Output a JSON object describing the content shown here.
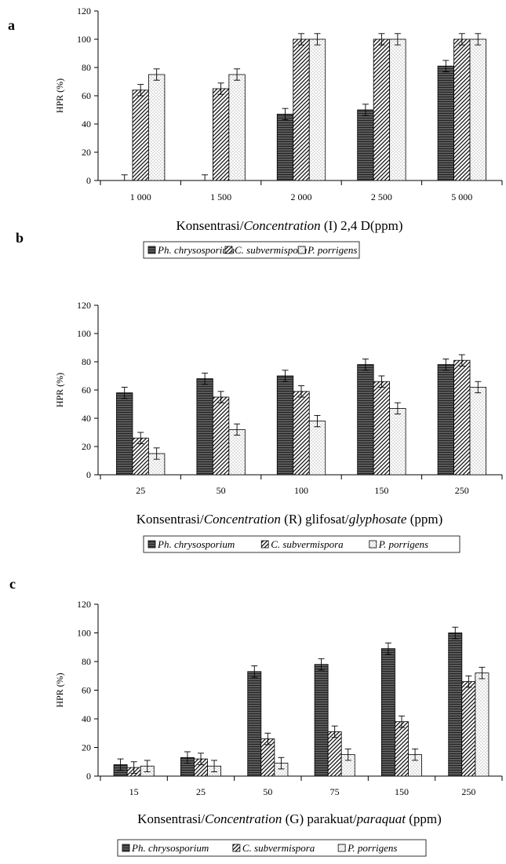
{
  "legend": [
    "Ph. chrysosporium",
    "C. subvermispora",
    "P. porrigens"
  ],
  "chart_data": [
    {
      "type": "bar",
      "panel": "a",
      "xlabel_parts": [
        {
          "text": "Konsentrasi/",
          "italic": false
        },
        {
          "text": "Concentration",
          "italic": true
        },
        {
          "text": " (I) 2,4 D(ppm)",
          "italic": false
        }
      ],
      "ylabel": "HPR (%)",
      "ylim": [
        0,
        120
      ],
      "yticks": [
        0,
        20,
        40,
        60,
        80,
        100,
        120
      ],
      "categories": [
        "1 000",
        "1 500",
        "2 000",
        "2 500",
        "5 000"
      ],
      "series": [
        {
          "name": "Ph. chrysosporium",
          "values": [
            0,
            0,
            47,
            50,
            81
          ]
        },
        {
          "name": "C. subvermispora",
          "values": [
            64,
            65,
            100,
            100,
            100
          ]
        },
        {
          "name": "P. porrigens",
          "values": [
            75,
            75,
            100,
            100,
            100
          ]
        }
      ],
      "error": 4
    },
    {
      "type": "bar",
      "panel": "b",
      "xlabel_parts": [
        {
          "text": "Konsentrasi/",
          "italic": false
        },
        {
          "text": "Concentration",
          "italic": true
        },
        {
          "text": " (R) glifosat/",
          "italic": false
        },
        {
          "text": "glyphosate",
          "italic": true
        },
        {
          "text": " (ppm)",
          "italic": false
        }
      ],
      "ylabel": "HPR (%)",
      "ylim": [
        0,
        120
      ],
      "yticks": [
        0,
        20,
        40,
        60,
        80,
        100,
        120
      ],
      "categories": [
        "25",
        "50",
        "100",
        "150",
        "250"
      ],
      "series": [
        {
          "name": "Ph. chrysosporium",
          "values": [
            58,
            68,
            70,
            78,
            78
          ]
        },
        {
          "name": "C. subvermispora",
          "values": [
            26,
            55,
            59,
            66,
            81
          ]
        },
        {
          "name": "P. porrigens",
          "values": [
            15,
            32,
            38,
            47,
            62
          ]
        }
      ],
      "error": 4
    },
    {
      "type": "bar",
      "panel": "c",
      "xlabel_parts": [
        {
          "text": "Konsentrasi/",
          "italic": false
        },
        {
          "text": "Concentration",
          "italic": true
        },
        {
          "text": " (G) parakuat/",
          "italic": false
        },
        {
          "text": "paraquat",
          "italic": true
        },
        {
          "text": " (ppm)",
          "italic": false
        }
      ],
      "ylabel": "HPR (%)",
      "ylim": [
        0,
        120
      ],
      "yticks": [
        0,
        20,
        40,
        60,
        80,
        100,
        120
      ],
      "categories": [
        "15",
        "25",
        "50",
        "75",
        "150",
        "250"
      ],
      "series": [
        {
          "name": "Ph. chrysosporium",
          "values": [
            8,
            13,
            73,
            78,
            89,
            100
          ]
        },
        {
          "name": "C. subvermispora",
          "values": [
            6,
            12,
            26,
            31,
            38,
            66
          ]
        },
        {
          "name": "P. porrigens",
          "values": [
            7,
            7,
            9,
            15,
            15,
            72
          ]
        }
      ],
      "error": 4
    }
  ]
}
